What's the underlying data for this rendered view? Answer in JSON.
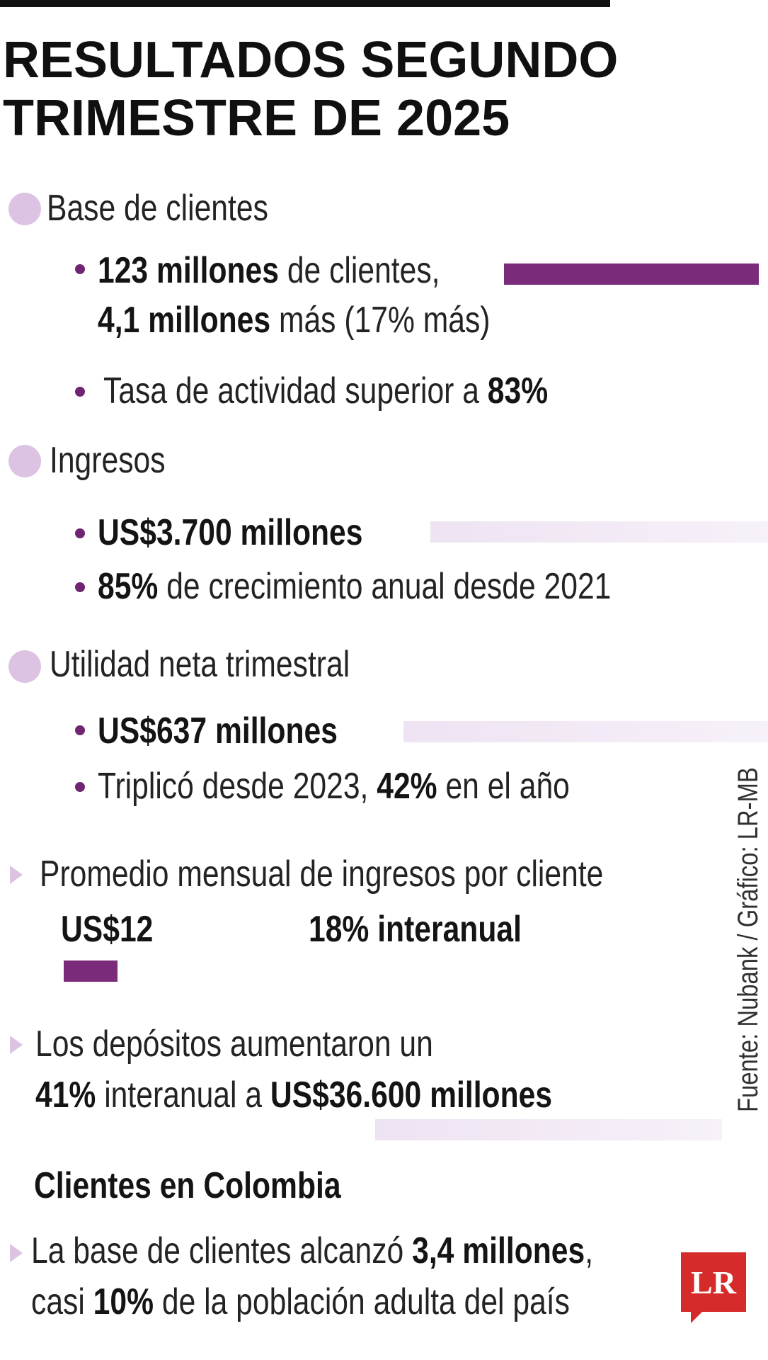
{
  "title": {
    "line1": "RESULTADOS SEGUNDO",
    "line2": "TRIMESTRE DE 2025"
  },
  "clientes": {
    "heading": "Base de clientes",
    "b1_bold": "123 millones",
    "b1_text": " de clientes,",
    "b1_line2_bold": "4,1 millones",
    "b1_line2_text": " más (17% más)",
    "b2_text": "Tasa de actividad superior a ",
    "b2_bold": "83%"
  },
  "ingresos": {
    "heading": "Ingresos",
    "b1_bold": "US$3.700 millones",
    "b2_bold": "85%",
    "b2_text": " de crecimiento anual desde 2021"
  },
  "utilidad": {
    "heading": "Utilidad neta trimestral",
    "b1_bold": "US$637 millones",
    "b2_text": "Triplicó desde 2023, ",
    "b2_bold": "42%",
    "b2_text2": " en el año"
  },
  "promedio": {
    "heading": "Promedio mensual de ingresos por cliente",
    "value": "US$12",
    "growth": "18% interanual"
  },
  "depositos": {
    "line1": "Los depósitos aumentaron un",
    "pct_bold": "41%",
    "mid_text": " interanual a ",
    "amount_bold": "US$36.600 millones"
  },
  "colombia": {
    "heading": "Clientes en Colombia",
    "l1_text": "La base de clientes alcanzó ",
    "l1_bold": "3,4 millones",
    "l1_end": ",",
    "l2_text": "casi ",
    "l2_bold": "10%",
    "l2_text2": " de la población adulta del país"
  },
  "source": "Fuente: Nubank / Gráfico: LR-MB",
  "logo_text": "LR",
  "colors": {
    "accent_purple": "#7a2b7a",
    "light_purple": "#dcc3e4",
    "logo_red": "#d62b2b"
  }
}
